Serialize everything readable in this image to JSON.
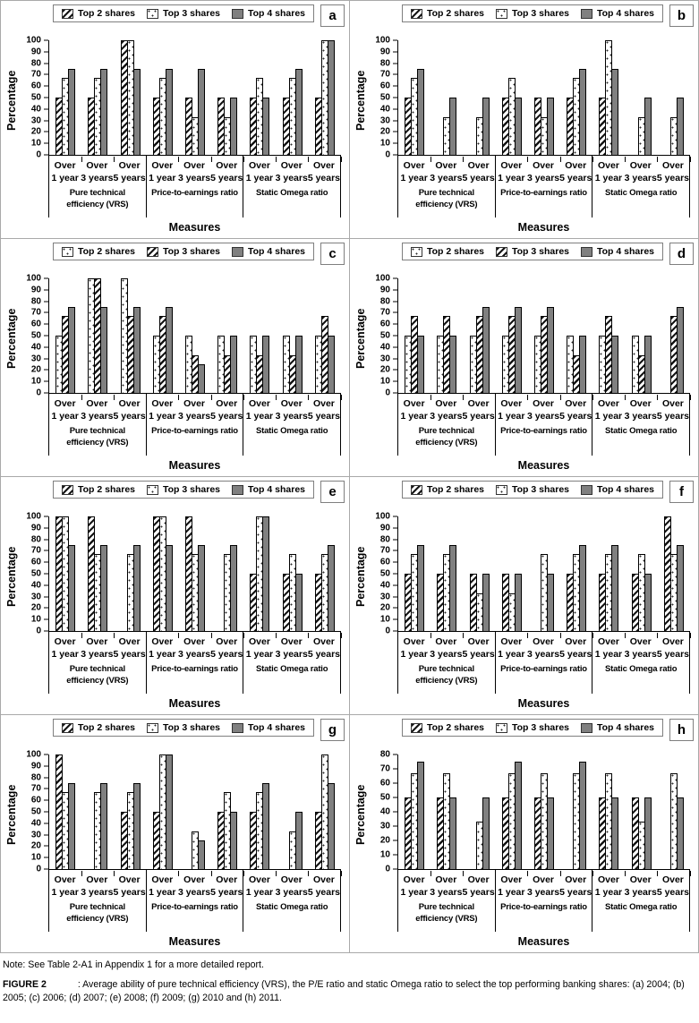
{
  "figure": {
    "note": "Note: See Table 2-A1 in Appendix 1 for a more detailed report.",
    "label": "FIGURE 2",
    "caption": ": Average ability of pure technical efficiency (VRS), the P/E ratio and static Omega ratio to select the top performing banking shares: (a) 2004; (b) 2005; (c) 2006; (d) 2007; (e) 2008; (f) 2009; (g) 2010 and (h) 2011."
  },
  "colors": {
    "bar_gray": "#808080",
    "axis": "#000000",
    "panel_border": "#a9a9a9",
    "hatch_black": "#151515"
  },
  "chart_data": [
    {
      "type": "bar",
      "panel": "a",
      "ylabel": "Percentage",
      "xlabel": "Measures",
      "ylim": [
        0,
        100
      ],
      "ytick_step": 10,
      "grid": false,
      "legend_position": "top",
      "group_labels": [
        [
          "Pure technical",
          "efficiency (VRS)"
        ],
        [
          "Price-to-earnings ratio"
        ],
        [
          "Static Omega ratio"
        ]
      ],
      "categories": [
        "Over 1 year",
        "Over 3 years",
        "Over 5 years",
        "Over 1 year",
        "Over 3 years",
        "Over 5 years",
        "Over 1 year",
        "Over 3 years",
        "Over 5 years"
      ],
      "series": [
        {
          "name": "Top 2 shares",
          "pattern": "diagonal-hatch",
          "values": [
            50,
            50,
            100,
            50,
            50,
            50,
            50,
            50,
            50
          ]
        },
        {
          "name": "Top 3 shares",
          "pattern": "speckle",
          "values": [
            67,
            67,
            100,
            67,
            33,
            33,
            67,
            67,
            100
          ]
        },
        {
          "name": "Top 4 shares",
          "pattern": "solid-gray",
          "values": [
            75,
            75,
            75,
            75,
            75,
            50,
            50,
            75,
            100
          ]
        }
      ]
    },
    {
      "type": "bar",
      "panel": "b",
      "ylabel": "Percentage",
      "xlabel": "Measures",
      "ylim": [
        0,
        100
      ],
      "ytick_step": 10,
      "grid": false,
      "legend_position": "top",
      "group_labels": [
        [
          "Pure technical",
          "efficiency (VRS)"
        ],
        [
          "Price-to-earnings ratio"
        ],
        [
          "Static Omega ratio"
        ]
      ],
      "categories": [
        "Over 1 year",
        "Over 3 years",
        "Over 5 years",
        "Over 1 year",
        "Over 3 years",
        "Over 5 years",
        "Over 1 year",
        "Over 3 years",
        "Over 5 years"
      ],
      "series": [
        {
          "name": "Top 2 shares",
          "pattern": "diagonal-hatch",
          "values": [
            50,
            0,
            0,
            50,
            50,
            50,
            50,
            0,
            0
          ]
        },
        {
          "name": "Top 3 shares",
          "pattern": "speckle",
          "values": [
            67,
            33,
            33,
            67,
            33,
            67,
            100,
            33,
            33
          ]
        },
        {
          "name": "Top 4 shares",
          "pattern": "solid-gray",
          "values": [
            75,
            50,
            50,
            50,
            50,
            75,
            75,
            50,
            50
          ]
        }
      ]
    },
    {
      "type": "bar",
      "panel": "c",
      "ylabel": "Percentage",
      "xlabel": "Measures",
      "ylim": [
        0,
        100
      ],
      "ytick_step": 10,
      "grid": false,
      "legend_position": "top",
      "group_labels": [
        [
          "Pure technical",
          "efficiency (VRS)"
        ],
        [
          "Price-to-earnings ratio"
        ],
        [
          "Static Omega ratio"
        ]
      ],
      "categories": [
        "Over 1 year",
        "Over 3 years",
        "Over 5 years",
        "Over 1 year",
        "Over 3 years",
        "Over 5 years",
        "Over 1 year",
        "Over 3 years",
        "Over 5 years"
      ],
      "series": [
        {
          "name": "Top 2 shares",
          "pattern": "speckle",
          "values": [
            50,
            100,
            100,
            50,
            50,
            50,
            50,
            50,
            50
          ]
        },
        {
          "name": "Top 3 shares",
          "pattern": "diagonal-hatch",
          "values": [
            67,
            100,
            67,
            67,
            33,
            33,
            33,
            33,
            67
          ]
        },
        {
          "name": "Top 4 shares",
          "pattern": "solid-gray",
          "values": [
            75,
            75,
            75,
            75,
            25,
            50,
            50,
            50,
            50
          ]
        }
      ]
    },
    {
      "type": "bar",
      "panel": "d",
      "ylabel": "Percentage",
      "xlabel": "Measures",
      "ylim": [
        0,
        100
      ],
      "ytick_step": 10,
      "grid": false,
      "legend_position": "top",
      "group_labels": [
        [
          "Pure technical",
          "efficiency (VRS)"
        ],
        [
          "Price-to-earnings ratio"
        ],
        [
          "Static Omega ratio"
        ]
      ],
      "categories": [
        "Over 1 year",
        "Over 3 years",
        "Over 5 years",
        "Over 1 year",
        "Over 3 years",
        "Over 5 years",
        "Over 1 year",
        "Over 3 years",
        "Over 5 years"
      ],
      "series": [
        {
          "name": "Top 2 shares",
          "pattern": "speckle",
          "values": [
            50,
            50,
            50,
            50,
            50,
            50,
            50,
            50,
            0
          ]
        },
        {
          "name": "Top 3 shares",
          "pattern": "diagonal-hatch",
          "values": [
            67,
            67,
            67,
            67,
            67,
            33,
            67,
            33,
            67
          ]
        },
        {
          "name": "Top 4 shares",
          "pattern": "solid-gray",
          "values": [
            50,
            50,
            75,
            75,
            75,
            50,
            50,
            50,
            75
          ]
        }
      ]
    },
    {
      "type": "bar",
      "panel": "e",
      "ylabel": "Percentage",
      "xlabel": "Measures",
      "ylim": [
        0,
        100
      ],
      "ytick_step": 10,
      "grid": false,
      "legend_position": "top",
      "group_labels": [
        [
          "Pure technical",
          "efficiency (VRS)"
        ],
        [
          "Price-to-earnings ratio"
        ],
        [
          "Static Omega ratio"
        ]
      ],
      "categories": [
        "Over 1 year",
        "Over 3 years",
        "Over 5 years",
        "Over 1 year",
        "Over 3 years",
        "Over 5 years",
        "Over 1 year",
        "Over 3 years",
        "Over 5 years"
      ],
      "series": [
        {
          "name": "Top 2 shares",
          "pattern": "diagonal-hatch",
          "values": [
            100,
            100,
            0,
            100,
            100,
            0,
            50,
            50,
            50
          ]
        },
        {
          "name": "Top 3 shares",
          "pattern": "speckle",
          "values": [
            100,
            67,
            67,
            100,
            67,
            67,
            100,
            67,
            67
          ]
        },
        {
          "name": "Top 4 shares",
          "pattern": "solid-gray",
          "values": [
            75,
            75,
            75,
            75,
            75,
            75,
            100,
            50,
            75
          ]
        }
      ]
    },
    {
      "type": "bar",
      "panel": "f",
      "ylabel": "Percentage",
      "xlabel": "Measures",
      "ylim": [
        0,
        100
      ],
      "ytick_step": 10,
      "grid": false,
      "legend_position": "top",
      "group_labels": [
        [
          "Pure technical",
          "efficiency (VRS)"
        ],
        [
          "Price-to-earnings ratio"
        ],
        [
          "Static Omega ratio"
        ]
      ],
      "categories": [
        "Over 1 year",
        "Over 3 years",
        "Over 5 years",
        "Over 1 year",
        "Over 3 years",
        "Over 5 years",
        "Over 1 year",
        "Over 3 years",
        "Over 5 years"
      ],
      "series": [
        {
          "name": "Top 2 shares",
          "pattern": "diagonal-hatch",
          "values": [
            50,
            50,
            50,
            50,
            0,
            50,
            50,
            50,
            100
          ]
        },
        {
          "name": "Top 3 shares",
          "pattern": "speckle",
          "values": [
            67,
            67,
            33,
            33,
            67,
            67,
            67,
            67,
            67
          ]
        },
        {
          "name": "Top 4 shares",
          "pattern": "solid-gray",
          "values": [
            75,
            75,
            50,
            50,
            50,
            75,
            75,
            50,
            75
          ]
        }
      ]
    },
    {
      "type": "bar",
      "panel": "g",
      "ylabel": "Percentage",
      "xlabel": "Measures",
      "ylim": [
        0,
        100
      ],
      "ytick_step": 10,
      "grid": false,
      "legend_position": "top",
      "group_labels": [
        [
          "Pure technical",
          "efficiency (VRS)"
        ],
        [
          "Price-to-earnings ratio"
        ],
        [
          "Static Omega ratio"
        ]
      ],
      "categories": [
        "Over 1 year",
        "Over 3 years",
        "Over 5 years",
        "Over 1 year",
        "Over 3 years",
        "Over 5 years",
        "Over 1 year",
        "Over 3 years",
        "Over 5 years"
      ],
      "series": [
        {
          "name": "Top 2 shares",
          "pattern": "diagonal-hatch",
          "values": [
            100,
            0,
            50,
            50,
            0,
            50,
            50,
            0,
            50
          ]
        },
        {
          "name": "Top 3 shares",
          "pattern": "speckle",
          "values": [
            67,
            67,
            67,
            100,
            33,
            67,
            67,
            33,
            100
          ]
        },
        {
          "name": "Top 4 shares",
          "pattern": "solid-gray",
          "values": [
            75,
            75,
            75,
            100,
            25,
            50,
            75,
            50,
            75
          ]
        }
      ]
    },
    {
      "type": "bar",
      "panel": "h",
      "ylabel": "Percentage",
      "xlabel": "Measures",
      "ylim": [
        0,
        80
      ],
      "ytick_step": 10,
      "grid": false,
      "legend_position": "top",
      "group_labels": [
        [
          "Pure technical",
          "efficiency (VRS)"
        ],
        [
          "Price-to-earnings ratio"
        ],
        [
          "Static Omega ratio"
        ]
      ],
      "categories": [
        "Over 1 year",
        "Over 3 years",
        "Over 5 years",
        "Over 1 year",
        "Over 3 years",
        "Over 5 years",
        "Over 1 year",
        "Over 3 years",
        "Over 5 years"
      ],
      "series": [
        {
          "name": "Top 2 shares",
          "pattern": "diagonal-hatch",
          "values": [
            50,
            50,
            0,
            50,
            50,
            0,
            50,
            50,
            0
          ]
        },
        {
          "name": "Top 3 shares",
          "pattern": "speckle",
          "values": [
            67,
            67,
            33,
            67,
            67,
            67,
            67,
            33,
            67
          ]
        },
        {
          "name": "Top 4 shares",
          "pattern": "solid-gray",
          "values": [
            75,
            50,
            50,
            75,
            50,
            75,
            50,
            50,
            50
          ]
        }
      ]
    }
  ]
}
